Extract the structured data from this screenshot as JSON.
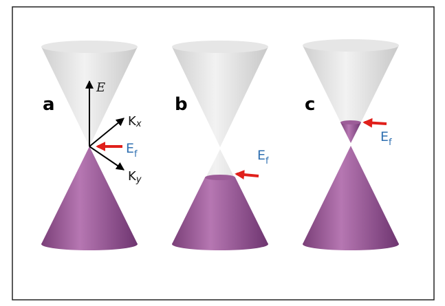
{
  "panels": [
    {
      "label": "a",
      "energy_axis": "E",
      "kx": {
        "base": "K",
        "sub": "x"
      },
      "ky": {
        "base": "K",
        "sub": "y"
      },
      "fermi": {
        "base": "E",
        "sub": "f"
      }
    },
    {
      "label": "b",
      "fermi": {
        "base": "E",
        "sub": "f"
      }
    },
    {
      "label": "c",
      "fermi": {
        "base": "E",
        "sub": "f"
      }
    }
  ]
}
